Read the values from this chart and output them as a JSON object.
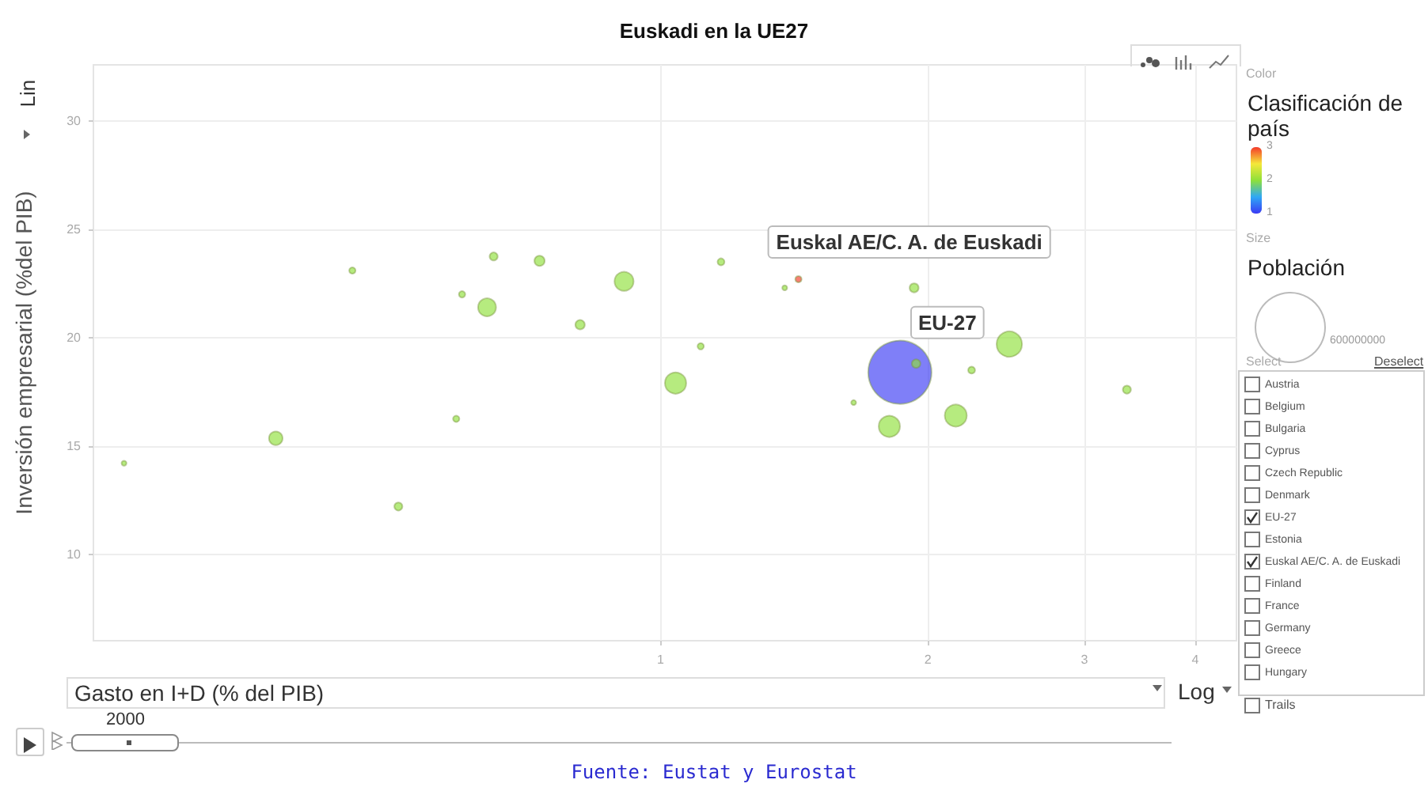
{
  "chart_data": {
    "type": "bubble",
    "title": "Euskadi en la UE27",
    "xlabel": "Gasto en I+D (% del PIB)",
    "ylabel": "Inversión empresarial (%del PIB)",
    "clabel": "Clasificación de país",
    "x": [
      0.249,
      0.369,
      0.45,
      0.507,
      0.589,
      0.598,
      0.638,
      0.649,
      0.731,
      0.812,
      0.91,
      1.04,
      1.11,
      1.17,
      1.38,
      1.43,
      1.93,
      1.65,
      1.86,
      1.94,
      1.81,
      2.15,
      2.24,
      2.47,
      3.35
    ],
    "values": [
      14.2,
      15.35,
      23.1,
      12.2,
      16.25,
      22.0,
      21.4,
      23.75,
      23.55,
      20.6,
      22.6,
      17.9,
      19.6,
      23.5,
      22.3,
      22.7,
      22.3,
      17.0,
      18.4,
      18.8,
      15.9,
      16.4,
      18.5,
      19.7,
      17.6
    ],
    "sizes": [
      3000000,
      23000000,
      5000000,
      8000000,
      5000000,
      5000000,
      40000000,
      8000000,
      13000000,
      11000000,
      45000000,
      56000000,
      5000000,
      6000000,
      3000000,
      5000000,
      10000000,
      3000000,
      496000000,
      9000000,
      56000000,
      60000000,
      6000000,
      80000000,
      8000000
    ],
    "cvalues": [
      2,
      2,
      2,
      2,
      2,
      2,
      2,
      2,
      2,
      2,
      2,
      2,
      2,
      2,
      2,
      3,
      2,
      2,
      1,
      2,
      2,
      2,
      2,
      2,
      2
    ],
    "size_legend": [
      600000000
    ],
    "clim": [
      1,
      3
    ],
    "cticks": [
      1,
      2,
      3
    ],
    "log": "x",
    "xlim": [
      0.23,
      4.45
    ],
    "xticks": [
      1,
      2,
      3,
      4
    ],
    "ylim": [
      6,
      32.6
    ],
    "yticks": [
      10,
      15,
      20,
      25,
      30
    ],
    "grid": true,
    "marker": "circle",
    "annotations": [
      {
        "text": "Euskal AE/C. A. de Euskadi",
        "x": 1.43,
        "y": 22.7
      },
      {
        "text": "EU-27",
        "x": 1.86,
        "y": 18.4
      },
      "Fuente: Eustat y Eurostat",
      "Lin",
      "Log",
      "Color",
      "Size",
      "Población",
      "Select",
      "Deselect",
      "Trails",
      "2000",
      "Austria",
      "Belgium",
      "Bulgaria",
      "Cyprus",
      "Czech Republic",
      "Denmark",
      "EU-27",
      "Estonia",
      "Euskal AE/C. A. de Euskadi",
      "Finland",
      "France",
      "Germany",
      "Greece",
      "Hungary"
    ]
  }
}
